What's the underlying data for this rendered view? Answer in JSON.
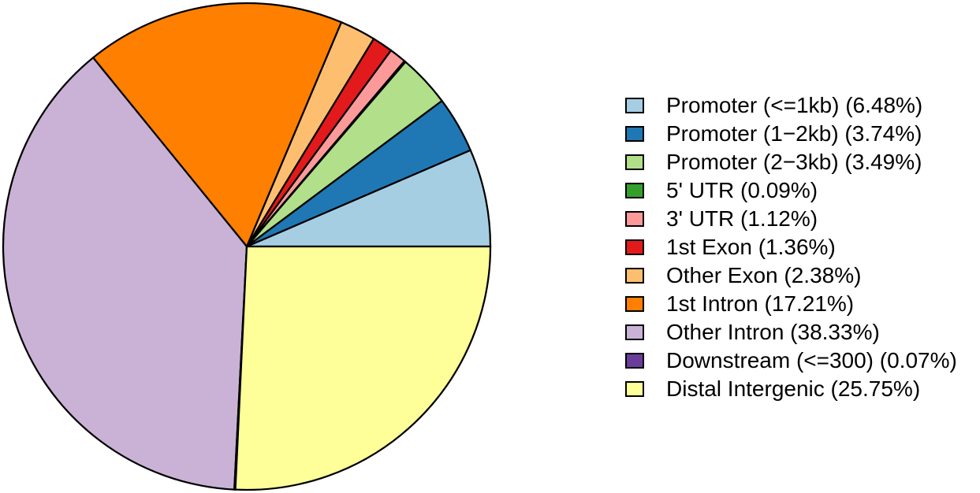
{
  "chart_data": {
    "type": "pie",
    "title": "",
    "start_angle_deg": 0,
    "direction": "counterclockwise",
    "legend_position": "right",
    "outline_color": "#000000",
    "background_color": "#ffffff",
    "slices": [
      {
        "label": "Promoter (<=1kb)",
        "pct": 6.48,
        "color": "#A6CEE3"
      },
      {
        "label": "Promoter (1−2kb)",
        "pct": 3.74,
        "color": "#1F78B4"
      },
      {
        "label": "Promoter (2−3kb)",
        "pct": 3.49,
        "color": "#B2DF8A"
      },
      {
        "label": "5' UTR",
        "pct": 0.09,
        "color": "#33A02C"
      },
      {
        "label": "3' UTR",
        "pct": 1.12,
        "color": "#FB9A99"
      },
      {
        "label": "1st Exon",
        "pct": 1.36,
        "color": "#E31A1C"
      },
      {
        "label": "Other Exon",
        "pct": 2.38,
        "color": "#FDBF6F"
      },
      {
        "label": "1st Intron",
        "pct": 17.21,
        "color": "#FF7F00"
      },
      {
        "label": "Other Intron",
        "pct": 38.33,
        "color": "#CAB2D6"
      },
      {
        "label": "Downstream (<=300)",
        "pct": 0.07,
        "color": "#6A3D9A"
      },
      {
        "label": "Distal Intergenic",
        "pct": 25.75,
        "color": "#FFFF99"
      }
    ]
  }
}
